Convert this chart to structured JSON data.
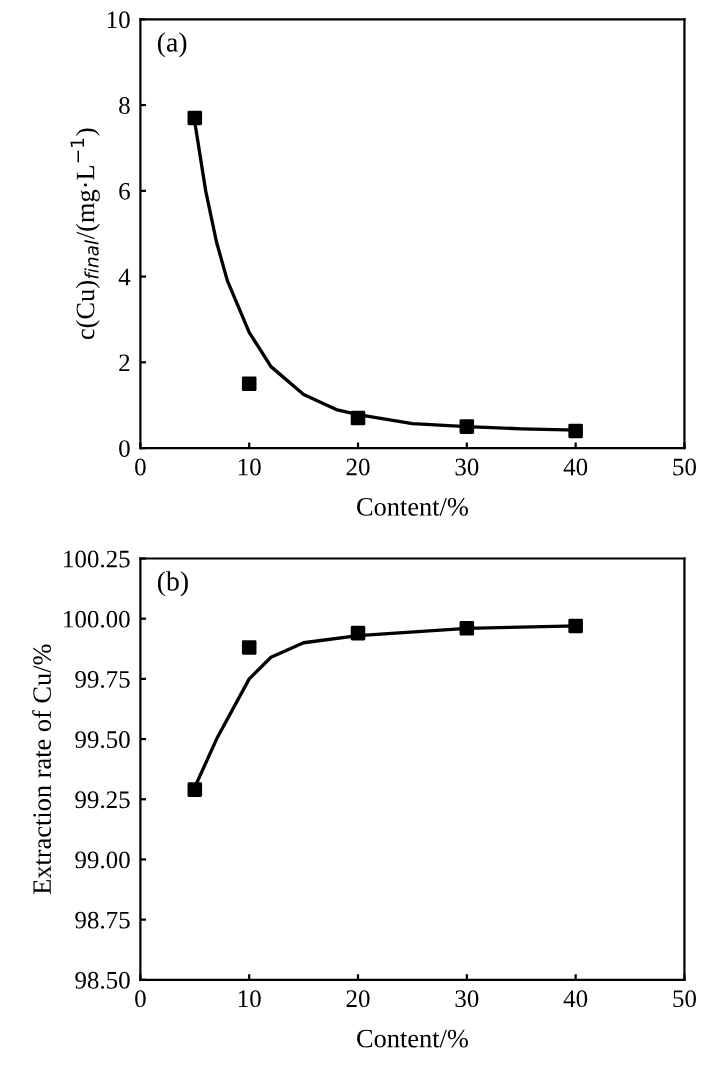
{
  "chart_data": [
    {
      "type": "scatter",
      "xlabel": "Content/%",
      "ylabel": "c(Cu)$_{final}$/(mg·L$^{−1}$)",
      "annotations": [
        "(a)"
      ],
      "xlim": [
        0,
        50
      ],
      "ylim": [
        0,
        10
      ],
      "xticks": [
        0,
        10,
        20,
        30,
        40,
        50
      ],
      "yticks": [
        0,
        2,
        4,
        6,
        8,
        10
      ],
      "grid": false,
      "series": [
        {
          "color": "#000000",
          "marker": "square",
          "x": [
            5,
            10,
            20,
            30,
            40
          ],
          "values": [
            7.7,
            1.5,
            0.7,
            0.5,
            0.4
          ]
        },
        {
          "type": "line",
          "color": "#000000",
          "marker": "none",
          "line_style": "solid",
          "x": [
            5,
            6,
            7,
            8,
            10,
            12,
            15,
            18,
            20,
            25,
            30,
            35,
            40
          ],
          "values": [
            7.6,
            6.0,
            4.8,
            3.9,
            2.7,
            1.9,
            1.25,
            0.9,
            0.78,
            0.57,
            0.5,
            0.45,
            0.42
          ]
        }
      ]
    },
    {
      "type": "scatter",
      "xlabel": "Content/%",
      "ylabel": "Extraction rate of Cu/%",
      "annotations": [
        "(b)"
      ],
      "xlim": [
        0,
        50
      ],
      "ylim": [
        98.5,
        100.25
      ],
      "xticks": [
        0,
        10,
        20,
        30,
        40,
        50
      ],
      "yticks": [
        {
          "value": 98.5,
          "label": "98.50"
        },
        {
          "value": 98.75,
          "label": "98.75"
        },
        {
          "value": 99.0,
          "label": "99.00"
        },
        {
          "value": 99.25,
          "label": "99.25"
        },
        {
          "value": 99.5,
          "label": "99.50"
        },
        {
          "value": 99.75,
          "label": "99.75"
        },
        {
          "value": 100.0,
          "label": "100.00"
        },
        {
          "value": 100.25,
          "label": "100.25"
        }
      ],
      "grid": false,
      "series": [
        {
          "color": "#000000",
          "marker": "square",
          "x": [
            5,
            10,
            20,
            30,
            40
          ],
          "values": [
            99.29,
            99.88,
            99.94,
            99.96,
            99.97
          ]
        },
        {
          "type": "line",
          "color": "#000000",
          "marker": "none",
          "line_style": "solid",
          "x": [
            5,
            7,
            10,
            12,
            15,
            20,
            30,
            40
          ],
          "values": [
            99.3,
            99.5,
            99.75,
            99.84,
            99.9,
            99.93,
            99.96,
            99.97
          ]
        }
      ]
    }
  ]
}
